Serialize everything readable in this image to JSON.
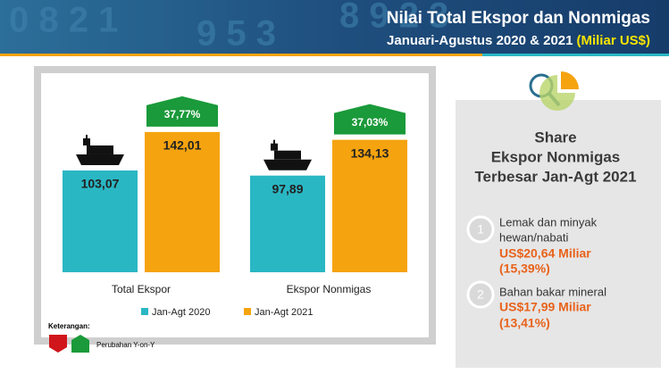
{
  "header": {
    "title": "Nilai Total Ekspor dan Nonmigas",
    "subtitle": "Januari-Agustus 2020 & 2021",
    "unit": "(Miliar US$)"
  },
  "chart_data": {
    "type": "bar",
    "categories": [
      "Total Ekspor",
      "Ekspor Nonmigas"
    ],
    "series": [
      {
        "name": "Jan-Agt 2020",
        "color": "#2ab7c4",
        "values": [
          103.07,
          97.89
        ],
        "value_labels": [
          "103,07",
          "97,89"
        ]
      },
      {
        "name": "Jan-Agt 2021",
        "color": "#f5a30f",
        "values": [
          142.01,
          134.13
        ],
        "value_labels": [
          "142,01",
          "134,13"
        ]
      }
    ],
    "annotations": [
      "37,77%",
      "37,03%"
    ],
    "ylim": [
      0,
      160
    ]
  },
  "legend_note": {
    "title": "Keterangan:",
    "label": "Perubahan Y-on-Y"
  },
  "share": {
    "title": [
      "Share",
      "Ekspor Nonmigas",
      "Terbesar Jan-Agt 2021"
    ],
    "items": [
      {
        "rank": "1",
        "name": [
          "Lemak dan minyak",
          "hewan/nabati"
        ],
        "amount": "US$20,64 Miliar",
        "share": "(15,39%)"
      },
      {
        "rank": "2",
        "name": [
          "Bahan bakar mineral"
        ],
        "amount": "US$17,99 Miliar",
        "share": "(13,41%)"
      }
    ]
  }
}
